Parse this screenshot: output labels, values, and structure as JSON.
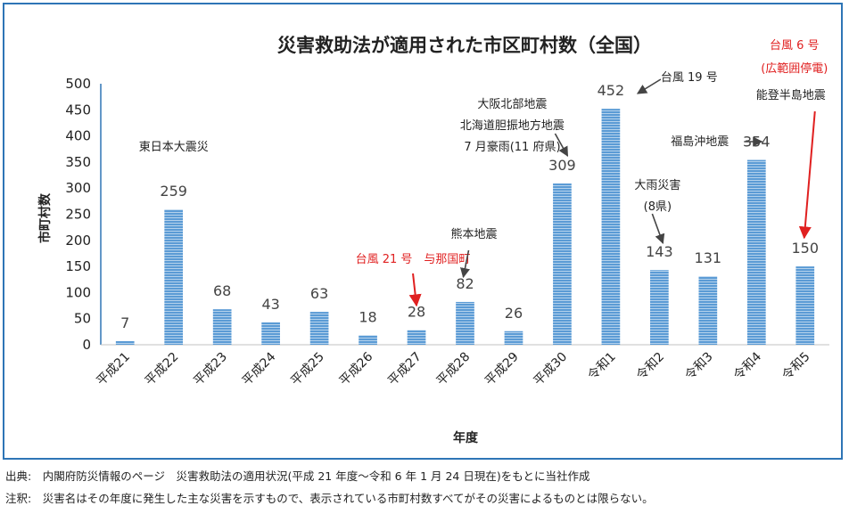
{
  "chart_data": {
    "type": "bar",
    "title": "災害救助法が適用された市区町村数（全国）",
    "xlabel": "年度",
    "ylabel": "市町村数",
    "ylim": [
      0,
      500
    ],
    "yticks": [
      0,
      50,
      100,
      150,
      200,
      250,
      300,
      350,
      400,
      450,
      500
    ],
    "grid": false,
    "categories": [
      "平成21",
      "平成22",
      "平成23",
      "平成24",
      "平成25",
      "平成26",
      "平成27",
      "平成28",
      "平成29",
      "平成30",
      "令和1",
      "令和2",
      "令和3",
      "令和4",
      "令和5"
    ],
    "values": [
      7,
      259,
      68,
      43,
      63,
      18,
      28,
      82,
      26,
      309,
      452,
      143,
      131,
      354,
      150
    ],
    "highlighted": [
      "平成27",
      "令和5"
    ],
    "colors": {
      "bar": "#5b9bd5",
      "bar_stripe": "#ffffff",
      "highlight": "#e02020",
      "frame": "#2e75b6"
    },
    "annotations": [
      {
        "category": "平成22",
        "lines": [
          "東日本大震災"
        ],
        "color": "#222222"
      },
      {
        "category": "平成27",
        "lines": [
          "台風 21 号　与那国町"
        ],
        "color": "#e02020"
      },
      {
        "category": "平成28",
        "lines": [
          "熊本地震"
        ],
        "color": "#222222"
      },
      {
        "category": "平成30",
        "lines": [
          "大阪北部地震",
          "北海道胆振地方地震",
          "7 月豪雨(11 府県)"
        ],
        "color": "#222222"
      },
      {
        "category": "令和1",
        "lines": [
          "台風 19 号"
        ],
        "color": "#222222"
      },
      {
        "category": "令和2",
        "lines": [
          "大雨災害",
          "(8県)"
        ],
        "color": "#222222"
      },
      {
        "category": "令和4",
        "lines": [
          "福島沖地震"
        ],
        "color": "#222222"
      },
      {
        "category": "令和5",
        "lines": [
          "台風 6 号",
          "(広範囲停電)"
        ],
        "color": "#e02020"
      },
      {
        "category": "令和5",
        "lines": [
          "能登半島地震"
        ],
        "color": "#222222"
      }
    ]
  },
  "footnotes": {
    "source": "出典:　内閣府防災情報のページ　災害救助法の適用状況(平成 21 年度～令和 6 年 1 月 24 日現在)をもとに当社作成",
    "note": "注釈:　災害名はその年度に発生した主な災害を示すもので、表示されている市町村数すべてがその災害によるものとは限らない。"
  }
}
